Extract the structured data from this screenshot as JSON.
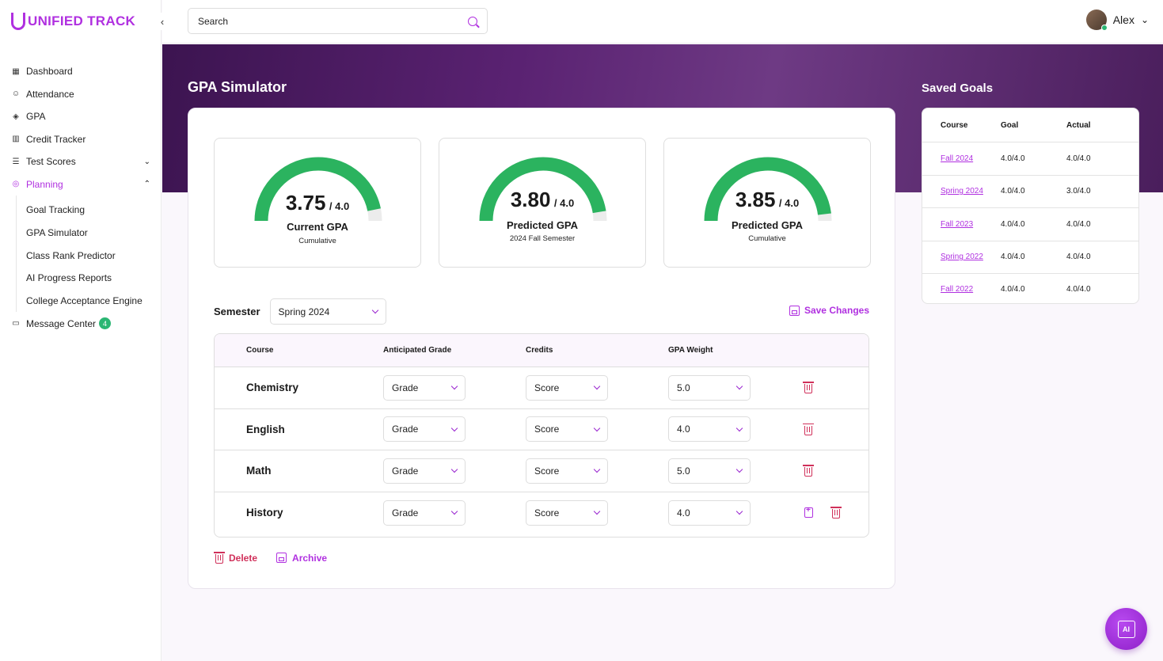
{
  "brand": {
    "name": "UNIFIED TRACK",
    "accent": "#b030e0"
  },
  "search": {
    "placeholder": "Search"
  },
  "user": {
    "name": "Alex"
  },
  "nav": {
    "items": [
      {
        "label": "Dashboard",
        "icon": "grid-icon"
      },
      {
        "label": "Attendance",
        "icon": "user-check-icon"
      },
      {
        "label": "GPA",
        "icon": "graduation-cap-icon"
      },
      {
        "label": "Credit Tracker",
        "icon": "bar-chart-icon"
      },
      {
        "label": "Test Scores",
        "icon": "list-check-icon"
      },
      {
        "label": "Planning",
        "icon": "target-icon"
      }
    ],
    "planning_sub": [
      {
        "label": "Goal Tracking"
      },
      {
        "label": "GPA Simulator"
      },
      {
        "label": "Class Rank Predictor"
      },
      {
        "label": "AI Progress Reports"
      },
      {
        "label": "College Acceptance Engine"
      }
    ],
    "message_center": {
      "label": "Message Center",
      "badge": "4"
    }
  },
  "page": {
    "title": "GPA Simulator"
  },
  "gauges": [
    {
      "value": "3.75",
      "max": "/ 4.0",
      "label": "Current GPA",
      "sub": "Cumulative",
      "fraction": 0.9375
    },
    {
      "value": "3.80",
      "max": "/ 4.0",
      "label": "Predicted GPA",
      "sub": "2024 Fall Semester",
      "fraction": 0.95
    },
    {
      "value": "3.85",
      "max": "/ 4.0",
      "label": "Predicted GPA",
      "sub": "Cumulative",
      "fraction": 0.9625
    }
  ],
  "semester": {
    "label": "Semester",
    "selected": "Spring 2024"
  },
  "save_changes": "Save Changes",
  "table": {
    "headers": [
      "Course",
      "Anticipated Grade",
      "Credits",
      "GPA Weight"
    ],
    "rows": [
      {
        "course": "Chemistry",
        "grade": "Grade",
        "credits": "Score",
        "weight": "5.0"
      },
      {
        "course": "English",
        "grade": "Grade",
        "credits": "Score",
        "weight": "4.0"
      },
      {
        "course": "Math",
        "grade": "Grade",
        "credits": "Score",
        "weight": "5.0"
      },
      {
        "course": "History",
        "grade": "Grade",
        "credits": "Score",
        "weight": "4.0"
      }
    ]
  },
  "actions": {
    "delete": "Delete",
    "archive": "Archive"
  },
  "saved_goals": {
    "title": "Saved Goals",
    "headers": [
      "Course",
      "Goal",
      "Actual"
    ],
    "rows": [
      {
        "course": "Fall 2024",
        "goal": "4.0/4.0",
        "actual": "4.0/4.0"
      },
      {
        "course": "Spring 2024",
        "goal": "4.0/4.0",
        "actual": "3.0/4.0"
      },
      {
        "course": "Fall 2023",
        "goal": "4.0/4.0",
        "actual": "4.0/4.0"
      },
      {
        "course": "Spring 2022",
        "goal": "4.0/4.0",
        "actual": "4.0/4.0"
      },
      {
        "course": "Fall 2022",
        "goal": "4.0/4.0",
        "actual": "4.0/4.0"
      }
    ]
  },
  "fab": {
    "label": "AI"
  },
  "colors": {
    "gauge_fill": "#2bb35f",
    "gauge_track": "#ececec",
    "delete": "#d0305a"
  }
}
